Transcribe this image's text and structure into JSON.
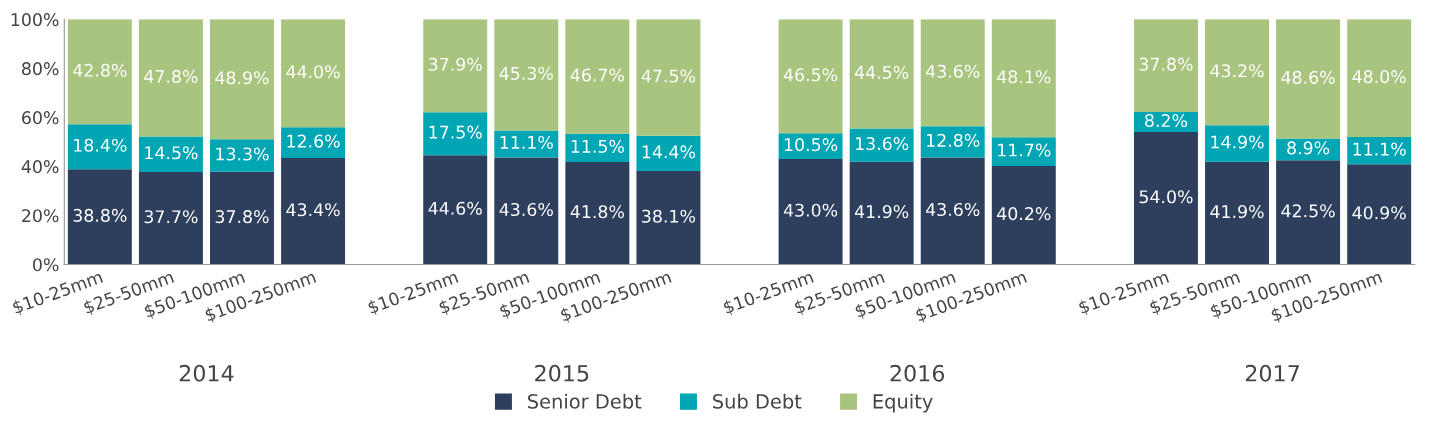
{
  "chart_data": {
    "type": "bar",
    "stacked": true,
    "categories": [
      "$10-25mm",
      "$25-50mm",
      "$50-100mm",
      "$100-250mm",
      null,
      "$10-25mm",
      "$25-50mm",
      "$50-100mm",
      "$100-250mm",
      null,
      "$10-25mm",
      "$25-50mm",
      "$50-100mm",
      "$100-250mm",
      null,
      "$10-25mm",
      "$25-50mm",
      "$50-100mm",
      "$100-250mm"
    ],
    "series": [
      {
        "name": "Senior Debt",
        "color": "#2e3f5e",
        "values": [
          38.8,
          37.7,
          37.8,
          43.4,
          null,
          44.6,
          43.6,
          41.8,
          38.1,
          null,
          43.0,
          41.9,
          43.6,
          40.2,
          null,
          54.0,
          41.9,
          42.5,
          40.9
        ],
        "value_labels": [
          "38.8%",
          "37.7%",
          "37.8%",
          "43.4%",
          null,
          "44.6%",
          "43.6%",
          "41.8%",
          "38.1%",
          null,
          "43.0%",
          "41.9%",
          "43.6%",
          "40.2%",
          null,
          "54.0%",
          "41.9%",
          "42.5%",
          "40.9%"
        ]
      },
      {
        "name": "Sub Debt",
        "color": "#00a6b4",
        "values": [
          18.4,
          14.5,
          13.3,
          12.6,
          null,
          17.5,
          11.1,
          11.5,
          14.4,
          null,
          10.5,
          13.6,
          12.8,
          11.7,
          null,
          8.2,
          14.9,
          8.9,
          11.1
        ],
        "value_labels": [
          "18.4%",
          "14.5%",
          "13.3%",
          "12.6%",
          null,
          "17.5%",
          "11.1%",
          "11.5%",
          "14.4%",
          null,
          "10.5%",
          "13.6%",
          "12.8%",
          "11.7%",
          null,
          "8.2%",
          "14.9%",
          "8.9%",
          "11.1%"
        ]
      },
      {
        "name": "Equity",
        "color": "#a9c47f",
        "values": [
          42.8,
          47.8,
          48.9,
          44.0,
          null,
          37.9,
          45.3,
          46.7,
          47.5,
          null,
          46.5,
          44.5,
          43.6,
          48.1,
          null,
          37.8,
          43.2,
          48.6,
          48.0
        ],
        "value_labels": [
          "42.8%",
          "47.8%",
          "48.9%",
          "44.0%",
          null,
          "37.9%",
          "45.3%",
          "46.7%",
          "47.5%",
          null,
          "46.5%",
          "44.5%",
          "43.6%",
          "48.1%",
          null,
          "37.8%",
          "43.2%",
          "48.6%",
          "48.0%"
        ]
      }
    ],
    "annotations": [
      "2014",
      "2015",
      "2016",
      "2017"
    ],
    "ylim": [
      0,
      100
    ],
    "yticks": [
      {
        "value": 0,
        "label": "0%"
      },
      {
        "value": 20,
        "label": "20%"
      },
      {
        "value": 40,
        "label": "40%"
      },
      {
        "value": 60,
        "label": "60%"
      },
      {
        "value": 80,
        "label": "80%"
      },
      {
        "value": 100,
        "label": "100%"
      }
    ],
    "grid": false,
    "legend": "bottom"
  }
}
